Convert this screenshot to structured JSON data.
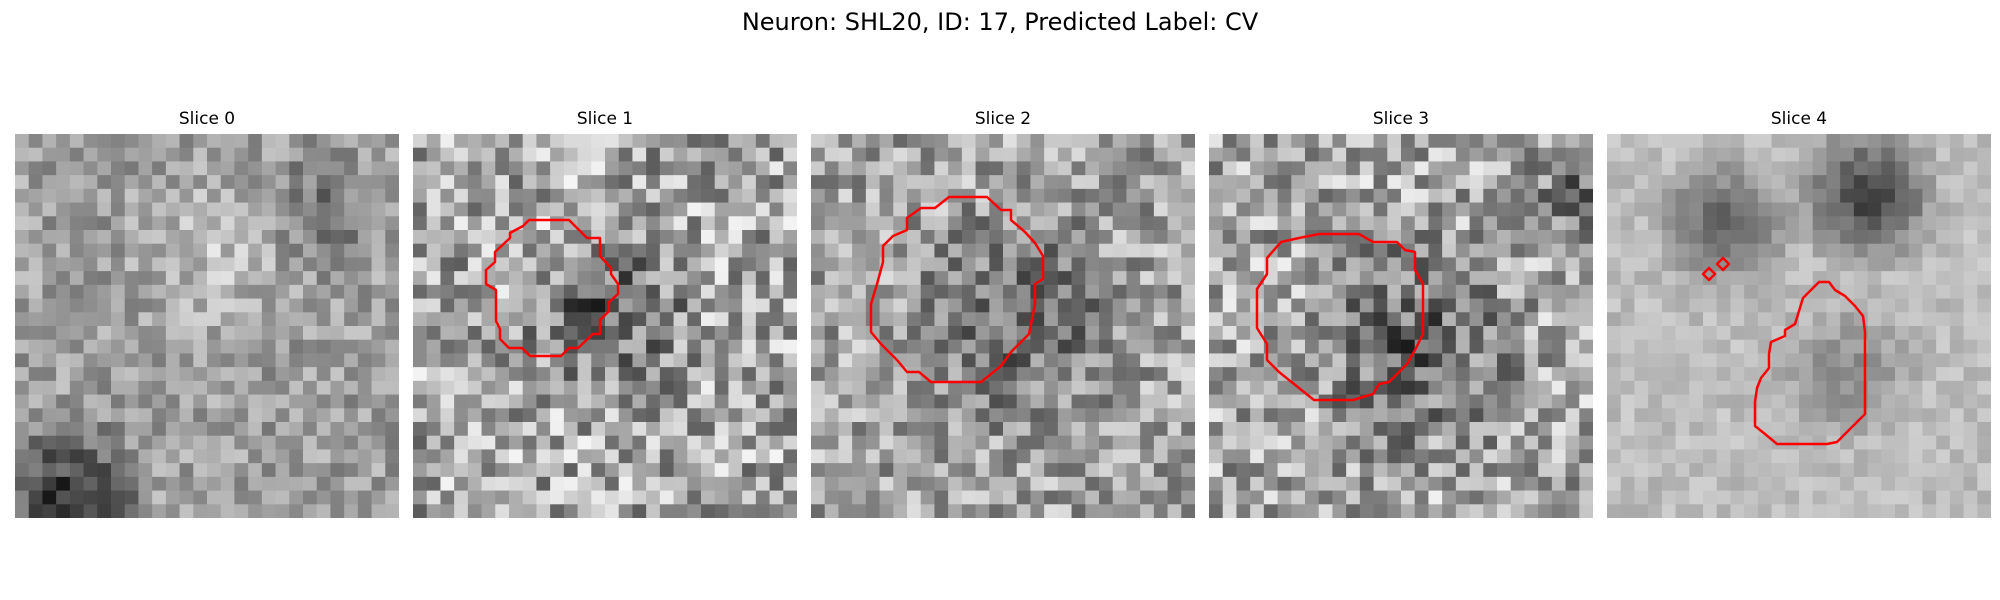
{
  "figure": {
    "suptitle": "Neuron: SHL20, ID: 17, Predicted Label: CV"
  },
  "panels": [
    {
      "title": "Slice 0",
      "has_contour": false
    },
    {
      "title": "Slice 1",
      "has_contour": true
    },
    {
      "title": "Slice 2",
      "has_contour": true
    },
    {
      "title": "Slice 3",
      "has_contour": true
    },
    {
      "title": "Slice 4",
      "has_contour": true
    }
  ],
  "style": {
    "colormap": "gray",
    "contour_color": "#ff0000"
  }
}
